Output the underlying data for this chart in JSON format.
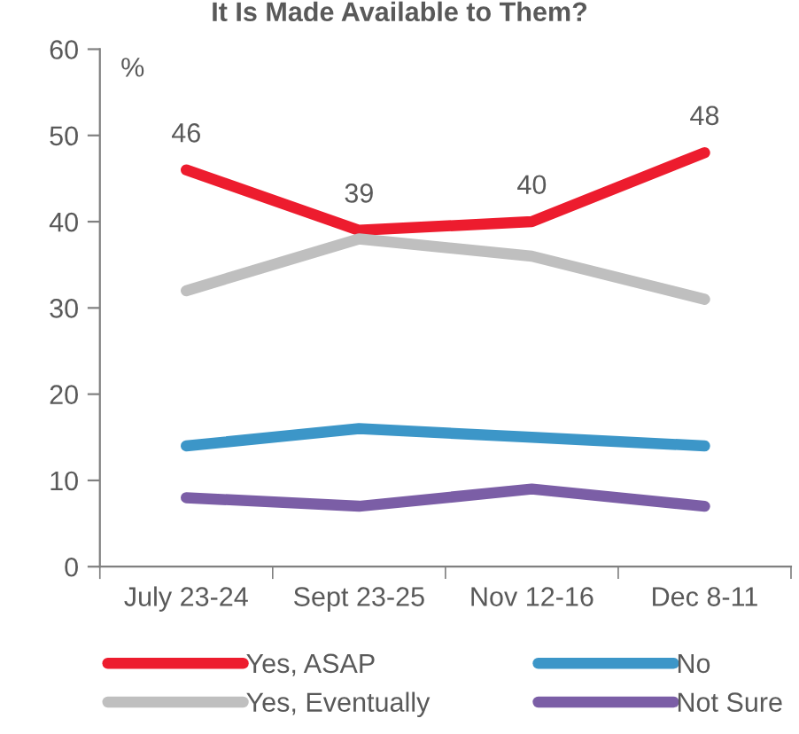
{
  "chart_data": {
    "type": "line",
    "title": "It Is Made Available to Them?",
    "ylabel": "%",
    "categories": [
      "July 23-24",
      "Sept 23-25",
      "Nov 12-16",
      "Dec 8-11"
    ],
    "series": [
      {
        "name": "Yes, ASAP",
        "color": "#ed1c2e",
        "values": [
          46,
          39,
          40,
          48
        ],
        "value_labels": [
          "46",
          "39",
          "40",
          "48"
        ]
      },
      {
        "name": "Yes, Eventually",
        "color": "#bfbfbf",
        "values": [
          32,
          38,
          36,
          31
        ]
      },
      {
        "name": "No",
        "color": "#3c96c8",
        "values": [
          14,
          16,
          15,
          14
        ]
      },
      {
        "name": "Not Sure",
        "color": "#7b5ea6",
        "values": [
          8,
          7,
          9,
          7
        ]
      }
    ],
    "ylim": [
      0,
      60
    ],
    "yticks": [
      0,
      10,
      20,
      30,
      40,
      50,
      60
    ],
    "grid": false,
    "legend": "bottom",
    "marker": "none",
    "line_style": "solid"
  }
}
